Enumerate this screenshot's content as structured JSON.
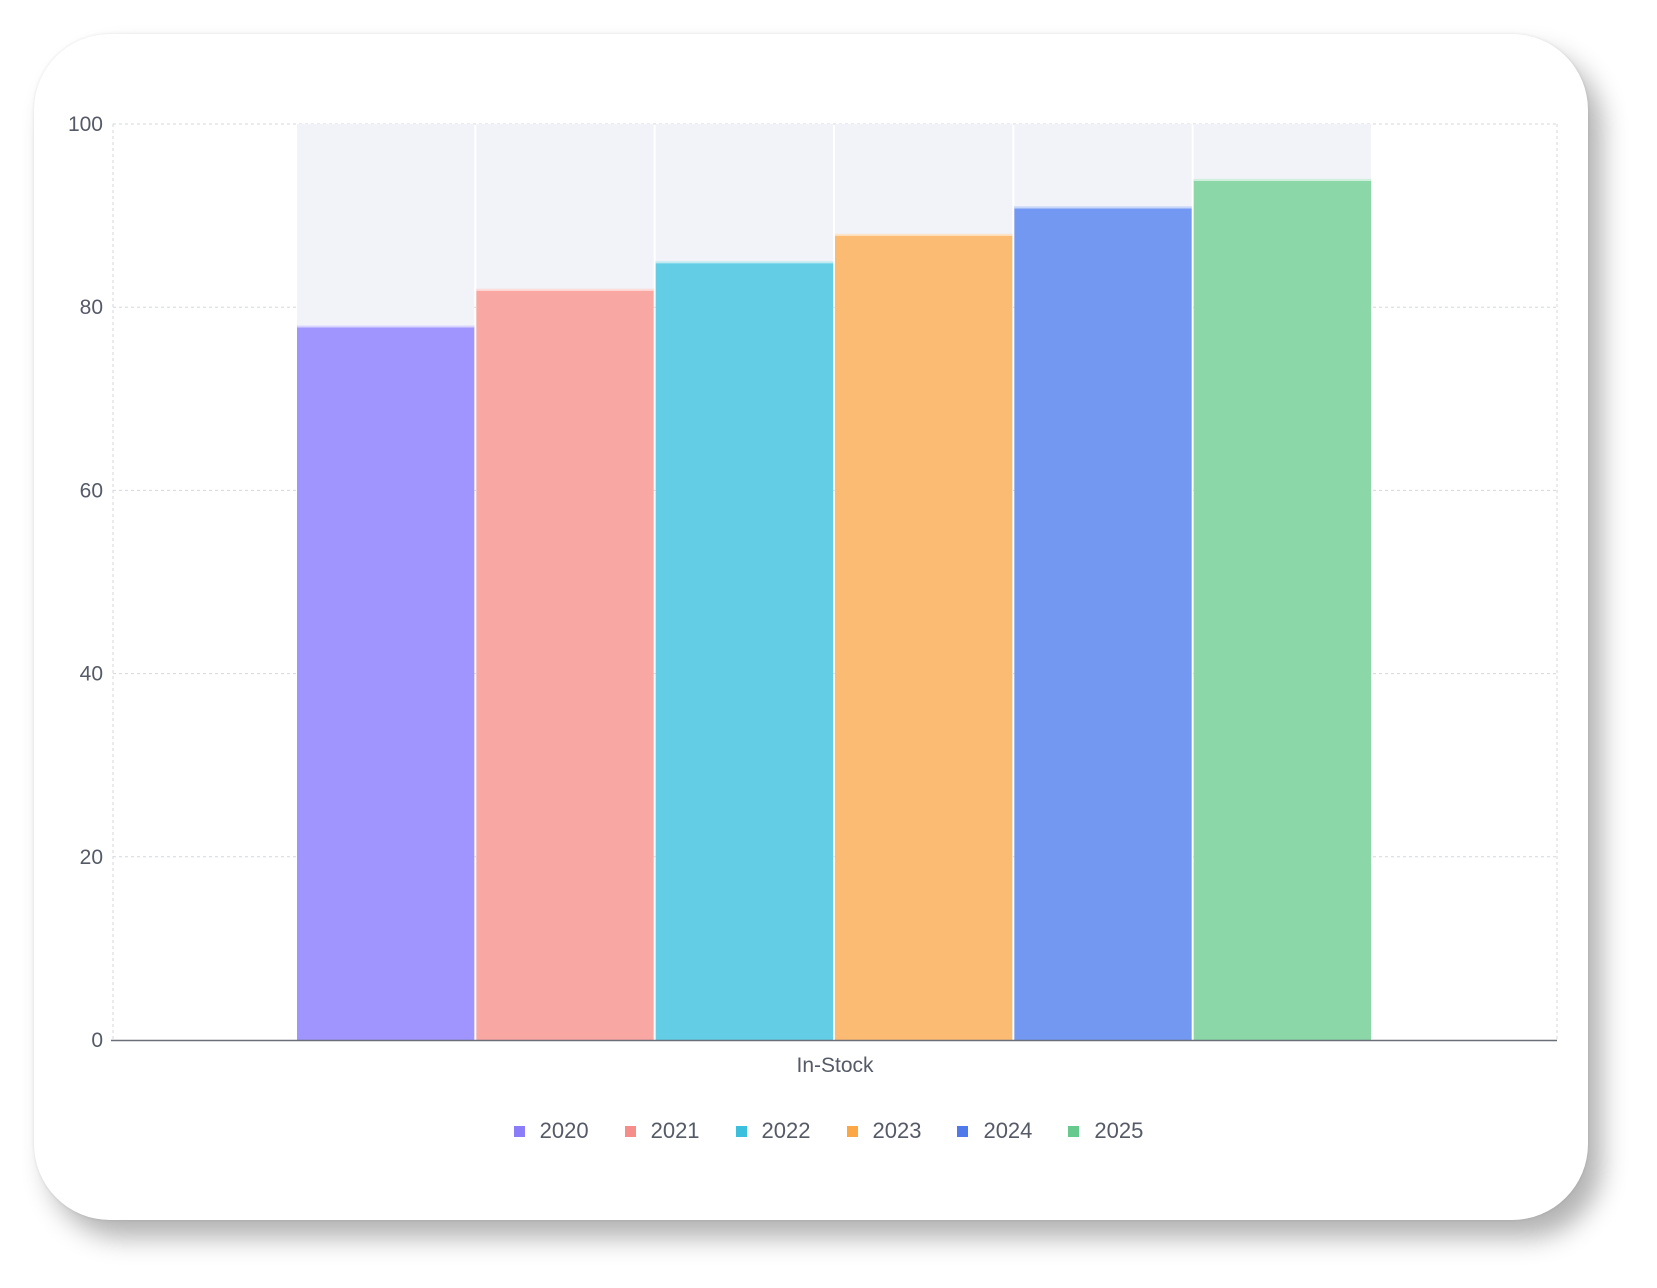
{
  "chart_data": {
    "type": "bar",
    "categories": [
      "In-Stock"
    ],
    "series": [
      {
        "name": "2020",
        "values": [
          78
        ],
        "color": "#a094fe",
        "legend_color": "#8b7cf8"
      },
      {
        "name": "2021",
        "values": [
          82
        ],
        "color": "#f9a7a3",
        "legend_color": "#f58e8a"
      },
      {
        "name": "2022",
        "values": [
          85
        ],
        "color": "#62cde4",
        "legend_color": "#3bbfdc"
      },
      {
        "name": "2023",
        "values": [
          88
        ],
        "color": "#fcbb72",
        "legend_color": "#fba744"
      },
      {
        "name": "2024",
        "values": [
          91
        ],
        "color": "#7398f2",
        "legend_color": "#5079ea"
      },
      {
        "name": "2025",
        "values": [
          94
        ],
        "color": "#8bd7a8",
        "legend_color": "#67c98d"
      }
    ],
    "title": "",
    "xlabel": "",
    "ylabel": "",
    "ylim": [
      0,
      100
    ],
    "yticks": [
      "0",
      "20",
      "40",
      "60",
      "80",
      "100"
    ],
    "grid": true,
    "legend_position": "bottom",
    "background_track_color": "#f1f3f8"
  }
}
